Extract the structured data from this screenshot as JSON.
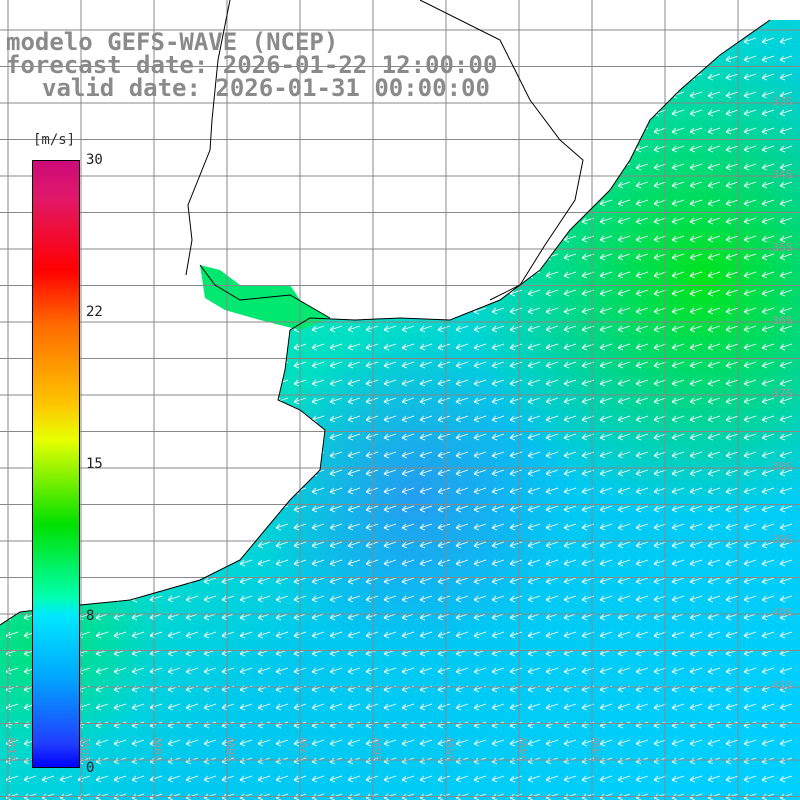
{
  "title": {
    "model": "modelo GEFS-WAVE (NCEP)",
    "forecast": "forecast date: 2026-01-22 12:00:00",
    "valid": "valid date: 2026-01-31 00:00:00"
  },
  "colorbar": {
    "unit": "[m/s]",
    "ticks": [
      "30",
      "22",
      "15",
      "8",
      "0"
    ],
    "range": [
      0,
      30
    ],
    "colors": [
      "#0000ff",
      "#00a8ff",
      "#00ffff",
      "#00e000",
      "#ffff00",
      "#ff6a00",
      "#ff0000",
      "#cc0a7a"
    ]
  },
  "map": {
    "lat_labels": [
      "33S",
      "34S",
      "35S",
      "36S",
      "37S",
      "38S",
      "39S",
      "40S",
      "41S"
    ],
    "lon_labels": [
      "61W",
      "60W",
      "59W",
      "58W",
      "57W",
      "56W",
      "55W",
      "54W",
      "53W"
    ],
    "field": "wind speed",
    "land_color": "#ffffff",
    "coast_color": "#000000",
    "arrow_color": "#ffffff"
  }
}
